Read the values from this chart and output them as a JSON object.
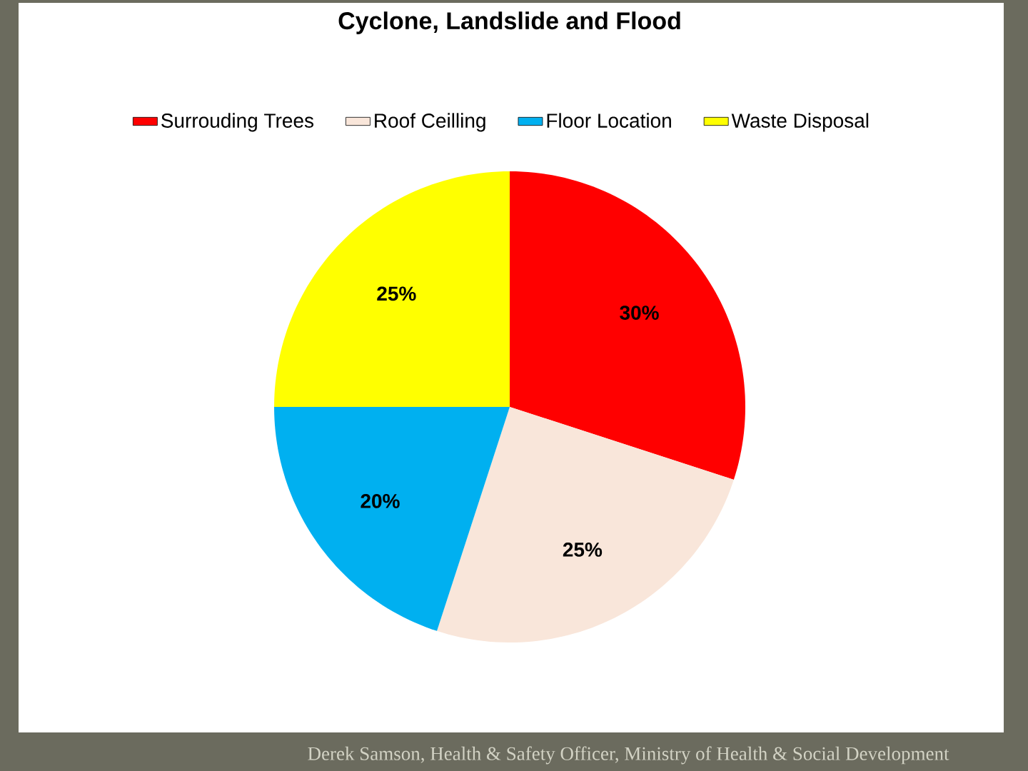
{
  "chart_data": {
    "type": "pie",
    "title": "Cyclone, Landslide and Flood",
    "categories": [
      "Surrouding Trees",
      "Roof Ceilling",
      "Floor Location",
      "Waste Disposal"
    ],
    "values": [
      30,
      25,
      20,
      25
    ],
    "colors": [
      "#ff0000",
      "#f9e6da",
      "#00b0f0",
      "#ffff00"
    ],
    "value_labels": [
      "30%",
      "25%",
      "20%",
      "25%"
    ],
    "legend": "top",
    "annotations": [
      "Derek Samson, Health & Safety Officer, Ministry of Health & Social Development"
    ]
  }
}
